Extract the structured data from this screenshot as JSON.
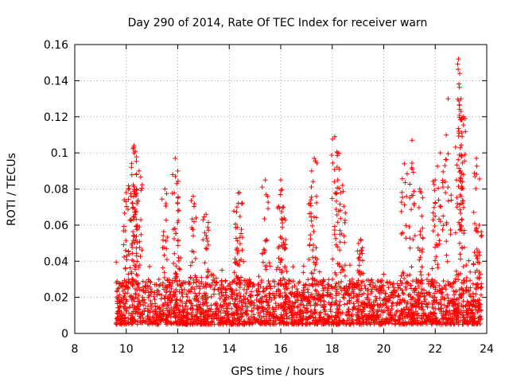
{
  "chart_data": {
    "type": "scatter",
    "title": "Day 290 of 2014, Rate Of TEC Index for receiver warn",
    "xlabel": "GPS time / hours",
    "ylabel": "ROTI / TECUs",
    "xlim": [
      8,
      24
    ],
    "ylim": [
      0,
      0.16
    ],
    "x_ticks": [
      8,
      10,
      12,
      14,
      16,
      18,
      20,
      22,
      24
    ],
    "x_tick_labels": [
      "8",
      "10",
      "12",
      "14",
      "16",
      "18",
      "20",
      "22",
      "24"
    ],
    "y_ticks": [
      0,
      0.02,
      0.04,
      0.06,
      0.08,
      0.1,
      0.12,
      0.14,
      0.16
    ],
    "y_tick_labels": [
      "0",
      "0.02",
      "0.04",
      "0.06",
      "0.08",
      "0.1",
      "0.12",
      "0.14",
      "0.16"
    ],
    "grid": true,
    "marker": "+",
    "color": "#ff0000",
    "series": [
      {
        "name": "ROTI",
        "x_range": [
          9.6,
          23.8
        ],
        "baseline_band": [
          0.005,
          0.03
        ],
        "notable_points": [
          {
            "x": 10.3,
            "y": 0.104
          },
          {
            "x": 10.3,
            "y": 0.1
          },
          {
            "x": 10.2,
            "y": 0.092
          },
          {
            "x": 10.5,
            "y": 0.09
          },
          {
            "x": 10.0,
            "y": 0.078
          },
          {
            "x": 10.4,
            "y": 0.08
          },
          {
            "x": 11.5,
            "y": 0.08
          },
          {
            "x": 11.9,
            "y": 0.097
          },
          {
            "x": 12.0,
            "y": 0.09
          },
          {
            "x": 12.6,
            "y": 0.076
          },
          {
            "x": 13.1,
            "y": 0.066
          },
          {
            "x": 14.4,
            "y": 0.078
          },
          {
            "x": 14.3,
            "y": 0.07
          },
          {
            "x": 15.4,
            "y": 0.085
          },
          {
            "x": 16.0,
            "y": 0.085
          },
          {
            "x": 16.1,
            "y": 0.07
          },
          {
            "x": 17.3,
            "y": 0.097
          },
          {
            "x": 17.2,
            "y": 0.09
          },
          {
            "x": 18.1,
            "y": 0.109
          },
          {
            "x": 18.2,
            "y": 0.1
          },
          {
            "x": 18.4,
            "y": 0.082
          },
          {
            "x": 19.1,
            "y": 0.052
          },
          {
            "x": 20.8,
            "y": 0.094
          },
          {
            "x": 21.1,
            "y": 0.107
          },
          {
            "x": 21.4,
            "y": 0.08
          },
          {
            "x": 22.0,
            "y": 0.085
          },
          {
            "x": 22.2,
            "y": 0.1
          },
          {
            "x": 22.5,
            "y": 0.13
          },
          {
            "x": 22.9,
            "y": 0.152
          },
          {
            "x": 22.95,
            "y": 0.144
          },
          {
            "x": 23.0,
            "y": 0.13
          },
          {
            "x": 23.0,
            "y": 0.123
          },
          {
            "x": 23.1,
            "y": 0.12
          },
          {
            "x": 23.6,
            "y": 0.097
          },
          {
            "x": 23.7,
            "y": 0.06
          }
        ]
      }
    ]
  }
}
